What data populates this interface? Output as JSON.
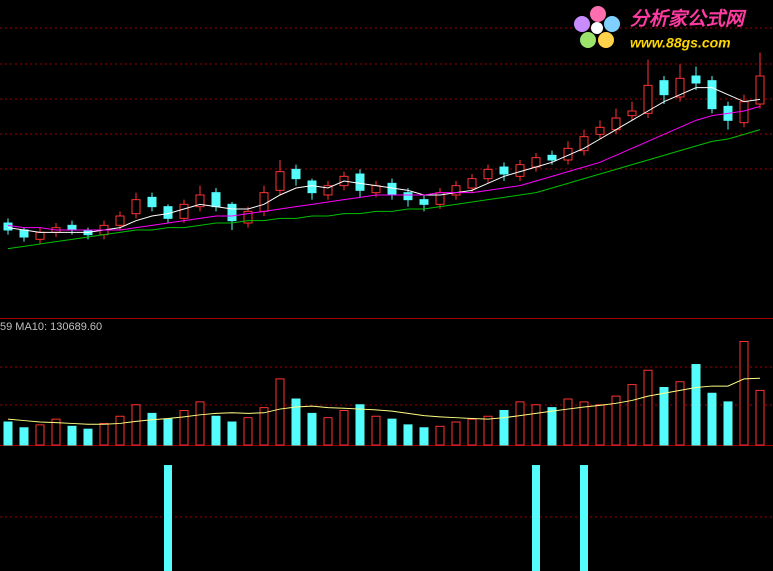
{
  "chart_data": {
    "type": "candlestick",
    "ylim": [
      8,
      20
    ],
    "open": [
      11.3,
      11.0,
      10.6,
      10.9,
      11.2,
      11.0,
      10.8,
      11.2,
      11.7,
      12.4,
      12.0,
      11.5,
      12.0,
      12.6,
      12.1,
      11.3,
      11.8,
      12.7,
      13.6,
      13.1,
      12.5,
      12.9,
      13.4,
      12.6,
      13.0,
      12.6,
      12.3,
      12.1,
      12.5,
      12.8,
      13.2,
      13.7,
      13.3,
      13.7,
      14.2,
      14.0,
      14.4,
      15.1,
      15.3,
      15.9,
      16.0,
      17.4,
      16.7,
      17.6,
      17.4,
      16.3,
      15.6,
      16.4
    ],
    "close": [
      11.0,
      10.7,
      10.9,
      11.1,
      11.0,
      10.8,
      11.2,
      11.6,
      12.3,
      12.0,
      11.5,
      12.1,
      12.5,
      12.0,
      11.4,
      11.8,
      12.6,
      13.5,
      13.2,
      12.6,
      12.9,
      13.3,
      12.7,
      12.9,
      12.5,
      12.3,
      12.1,
      12.6,
      12.9,
      13.2,
      13.6,
      13.4,
      13.8,
      14.1,
      14.0,
      14.5,
      15.0,
      15.4,
      15.8,
      16.1,
      17.2,
      16.8,
      17.5,
      17.3,
      16.2,
      15.7,
      16.5,
      17.6
    ],
    "high": [
      11.5,
      11.1,
      11.1,
      11.3,
      11.4,
      11.1,
      11.4,
      11.8,
      12.6,
      12.6,
      12.1,
      12.3,
      12.9,
      12.8,
      12.2,
      12.0,
      12.9,
      14.0,
      13.8,
      13.2,
      13.1,
      13.5,
      13.6,
      13.1,
      13.2,
      12.8,
      12.5,
      12.8,
      13.1,
      13.4,
      13.8,
      13.9,
      14.0,
      14.3,
      14.4,
      14.8,
      15.3,
      15.7,
      16.2,
      16.5,
      18.3,
      17.6,
      18.1,
      18.0,
      17.6,
      16.5,
      16.8,
      18.6
    ],
    "low": [
      10.8,
      10.5,
      10.4,
      10.7,
      10.8,
      10.6,
      10.6,
      11.0,
      11.5,
      11.8,
      11.3,
      11.3,
      11.8,
      11.8,
      11.0,
      11.1,
      11.6,
      12.5,
      12.9,
      12.3,
      12.3,
      12.7,
      12.4,
      12.4,
      12.3,
      12.0,
      11.8,
      11.9,
      12.3,
      12.6,
      13.0,
      13.1,
      13.1,
      13.5,
      13.8,
      13.8,
      14.2,
      14.9,
      15.1,
      15.7,
      15.8,
      16.4,
      16.5,
      17.0,
      16.0,
      15.3,
      15.4,
      16.2
    ],
    "up_color": "#ff3232",
    "down_color": "#54fcfc",
    "series": [
      {
        "color": "#ffffff",
        "values": [
          11.1,
          11.0,
          10.9,
          10.9,
          10.9,
          10.9,
          11.0,
          11.1,
          11.4,
          11.6,
          11.7,
          11.9,
          12.1,
          12.0,
          11.9,
          11.9,
          12.1,
          12.5,
          12.8,
          12.9,
          12.8,
          13.1,
          13.0,
          12.9,
          12.8,
          12.7,
          12.5,
          12.5,
          12.6,
          12.7,
          13.0,
          13.3,
          13.5,
          13.7,
          13.9,
          14.2,
          14.5,
          14.9,
          15.3,
          15.7,
          16.1,
          16.5,
          16.8,
          17.1,
          17.1,
          16.8,
          16.5,
          16.6
        ]
      },
      {
        "color": "#ff00ff",
        "values": [
          11.2,
          11.1,
          11.1,
          11.0,
          11.0,
          11.0,
          11.0,
          11.0,
          11.1,
          11.2,
          11.3,
          11.4,
          11.5,
          11.6,
          11.6,
          11.7,
          11.8,
          11.9,
          12.0,
          12.1,
          12.2,
          12.3,
          12.4,
          12.5,
          12.5,
          12.5,
          12.5,
          12.6,
          12.6,
          12.6,
          12.7,
          12.8,
          12.9,
          13.1,
          13.3,
          13.5,
          13.7,
          13.9,
          14.2,
          14.5,
          14.8,
          15.1,
          15.4,
          15.7,
          15.9,
          16.0,
          16.1,
          16.3
        ]
      },
      {
        "color": "#00c000",
        "values": [
          10.2,
          10.3,
          10.4,
          10.5,
          10.6,
          10.7,
          10.8,
          10.9,
          11.0,
          11.0,
          11.1,
          11.1,
          11.2,
          11.3,
          11.3,
          11.4,
          11.4,
          11.5,
          11.5,
          11.6,
          11.6,
          11.7,
          11.7,
          11.8,
          11.8,
          11.9,
          11.9,
          12.0,
          12.1,
          12.2,
          12.3,
          12.4,
          12.5,
          12.6,
          12.8,
          13.0,
          13.2,
          13.4,
          13.6,
          13.8,
          14.0,
          14.2,
          14.4,
          14.6,
          14.8,
          14.9,
          15.1,
          15.3
        ]
      }
    ],
    "annotation": "59  MA10: 130689.60",
    "volume": {
      "ylim": [
        0,
        400000
      ],
      "values": [
        80000,
        60000,
        70000,
        90000,
        65000,
        55000,
        75000,
        100000,
        140000,
        110000,
        90000,
        120000,
        150000,
        100000,
        80000,
        95000,
        130000,
        230000,
        160000,
        110000,
        95000,
        120000,
        140000,
        100000,
        90000,
        70000,
        60000,
        65000,
        80000,
        90000,
        100000,
        120000,
        150000,
        140000,
        130000,
        160000,
        150000,
        140000,
        170000,
        210000,
        260000,
        200000,
        220000,
        280000,
        180000,
        150000,
        360000,
        190000
      ],
      "ma_color": "#ffff80",
      "ma": [
        90000,
        85000,
        80000,
        78000,
        75000,
        72000,
        72000,
        75000,
        82000,
        88000,
        92000,
        98000,
        105000,
        110000,
        112000,
        110000,
        112000,
        125000,
        132000,
        135000,
        130000,
        128000,
        125000,
        122000,
        118000,
        110000,
        102000,
        98000,
        95000,
        92000,
        90000,
        95000,
        102000,
        110000,
        118000,
        125000,
        132000,
        138000,
        145000,
        155000,
        170000,
        180000,
        190000,
        200000,
        205000,
        205000,
        230000,
        232000
      ]
    },
    "signals": {
      "ylim": [
        0,
        1
      ],
      "color": "#54fcfc",
      "values": [
        0,
        0,
        0,
        0,
        0,
        0,
        0,
        0,
        0,
        0,
        1,
        0,
        0,
        0,
        0,
        0,
        0,
        0,
        0,
        0,
        0,
        0,
        0,
        0,
        0,
        0,
        0,
        0,
        0,
        0,
        0,
        0,
        0,
        1,
        0,
        0,
        1,
        0,
        0,
        0,
        0,
        0,
        0,
        0,
        0,
        0,
        0,
        0
      ]
    }
  },
  "logo": {
    "title": "分析家公式网",
    "url": "www.88gs.com"
  }
}
